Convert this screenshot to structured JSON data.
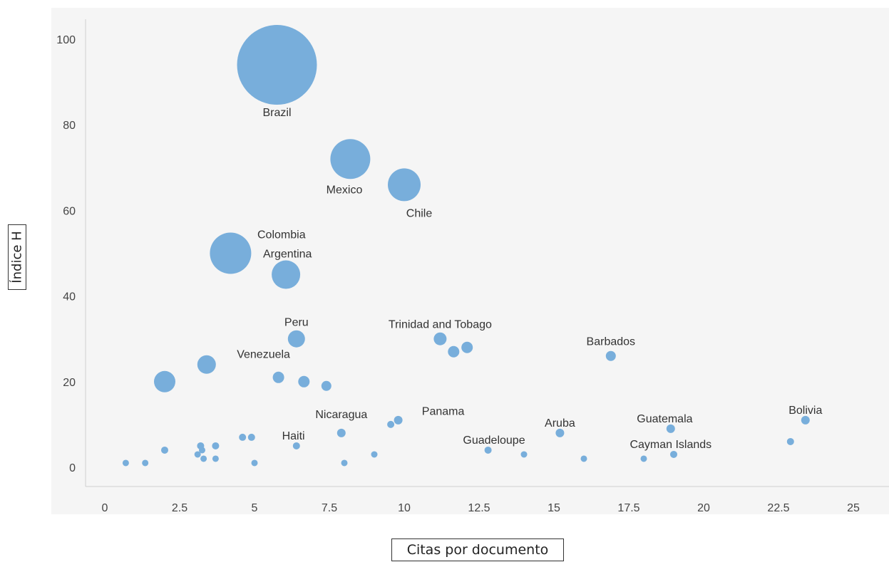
{
  "chart_data": {
    "type": "scatter",
    "xlabel": "Citas por documento",
    "ylabel": "Índice H",
    "xlim": [
      -0.5,
      25.5
    ],
    "ylim": [
      -4,
      103
    ],
    "xticks": [
      0,
      2.5,
      5,
      7.5,
      10,
      12.5,
      15,
      17.5,
      20,
      22.5,
      25
    ],
    "yticks": [
      0,
      20,
      40,
      60,
      80,
      100
    ],
    "grid": false,
    "color": "#78aedb",
    "points": [
      {
        "label": "Brazil",
        "x": 5.75,
        "y": 94,
        "size": 56,
        "label_x": 5.75,
        "label_y": 83
      },
      {
        "label": "Mexico",
        "x": 8.2,
        "y": 72,
        "size": 28,
        "label_x": 8.0,
        "label_y": 65
      },
      {
        "label": "Chile",
        "x": 10.0,
        "y": 66,
        "size": 23,
        "label_x": 10.5,
        "label_y": 59.5
      },
      {
        "label": "Colombia",
        "x": 4.2,
        "y": 50,
        "size": 29,
        "label_x": 5.9,
        "label_y": 54.5
      },
      {
        "label": "Argentina",
        "x": 6.05,
        "y": 45,
        "size": 20,
        "label_x": 6.1,
        "label_y": 50
      },
      {
        "label": "Peru",
        "x": 6.4,
        "y": 30,
        "size": 12,
        "label_x": 6.4,
        "label_y": 34
      },
      {
        "label": "Venezuela",
        "x": 3.4,
        "y": 24,
        "size": 13,
        "label_x": 5.3,
        "label_y": 26.5
      },
      {
        "label": "Trinidad and Tobago",
        "x": 11.2,
        "y": 30,
        "size": 9,
        "label_x": 11.2,
        "label_y": 33.5
      },
      {
        "label": "Barbados",
        "x": 16.9,
        "y": 26,
        "size": 7,
        "label_x": 16.9,
        "label_y": 29.5
      },
      {
        "label": "Nicaragua",
        "x": 7.9,
        "y": 8,
        "size": 6,
        "label_x": 7.9,
        "label_y": 12.5
      },
      {
        "label": "Panama",
        "x": 9.8,
        "y": 11,
        "size": 6,
        "label_x": 11.3,
        "label_y": 13.2
      },
      {
        "label": "Haiti",
        "x": 6.4,
        "y": 5,
        "size": 5,
        "label_x": 6.3,
        "label_y": 7.5
      },
      {
        "label": "Aruba",
        "x": 15.2,
        "y": 8,
        "size": 6,
        "label_x": 15.2,
        "label_y": 10.5
      },
      {
        "label": "Guatemala",
        "x": 18.9,
        "y": 9,
        "size": 6,
        "label_x": 18.7,
        "label_y": 11.5
      },
      {
        "label": "Guadeloupe",
        "x": 12.8,
        "y": 4,
        "size": 5,
        "label_x": 13.0,
        "label_y": 6.5
      },
      {
        "label": "Cayman Islands",
        "x": 19.0,
        "y": 3,
        "size": 5,
        "label_x": 18.9,
        "label_y": 5.5
      },
      {
        "label": "Bolivia",
        "x": 23.4,
        "y": 11,
        "size": 6,
        "label_x": 23.4,
        "label_y": 13.5
      },
      {
        "label": "",
        "x": 2.0,
        "y": 20,
        "size": 15
      },
      {
        "label": "",
        "x": 5.8,
        "y": 21,
        "size": 8
      },
      {
        "label": "",
        "x": 6.65,
        "y": 20,
        "size": 8
      },
      {
        "label": "",
        "x": 7.4,
        "y": 19,
        "size": 7
      },
      {
        "label": "",
        "x": 11.65,
        "y": 27,
        "size": 8
      },
      {
        "label": "",
        "x": 12.1,
        "y": 28,
        "size": 8
      },
      {
        "label": "",
        "x": 9.55,
        "y": 10,
        "size": 5
      },
      {
        "label": "",
        "x": 4.6,
        "y": 7,
        "size": 5
      },
      {
        "label": "",
        "x": 4.9,
        "y": 7,
        "size": 5
      },
      {
        "label": "",
        "x": 3.2,
        "y": 5,
        "size": 5
      },
      {
        "label": "",
        "x": 3.7,
        "y": 5,
        "size": 5
      },
      {
        "label": "",
        "x": 2.0,
        "y": 4,
        "size": 5
      },
      {
        "label": "",
        "x": 3.25,
        "y": 4,
        "size": 4.5
      },
      {
        "label": "",
        "x": 3.1,
        "y": 3,
        "size": 4.5
      },
      {
        "label": "",
        "x": 3.3,
        "y": 2,
        "size": 4.5
      },
      {
        "label": "",
        "x": 3.7,
        "y": 2,
        "size": 4.5
      },
      {
        "label": "",
        "x": 0.7,
        "y": 1,
        "size": 4.5
      },
      {
        "label": "",
        "x": 1.35,
        "y": 1,
        "size": 4.5
      },
      {
        "label": "",
        "x": 5.0,
        "y": 1,
        "size": 4.5
      },
      {
        "label": "",
        "x": 8.0,
        "y": 1,
        "size": 4.5
      },
      {
        "label": "",
        "x": 9.0,
        "y": 3,
        "size": 4.5
      },
      {
        "label": "",
        "x": 14.0,
        "y": 3,
        "size": 4.5
      },
      {
        "label": "",
        "x": 16.0,
        "y": 2,
        "size": 4.5
      },
      {
        "label": "",
        "x": 18.0,
        "y": 2,
        "size": 4.5
      },
      {
        "label": "",
        "x": 22.9,
        "y": 6,
        "size": 5
      }
    ]
  }
}
